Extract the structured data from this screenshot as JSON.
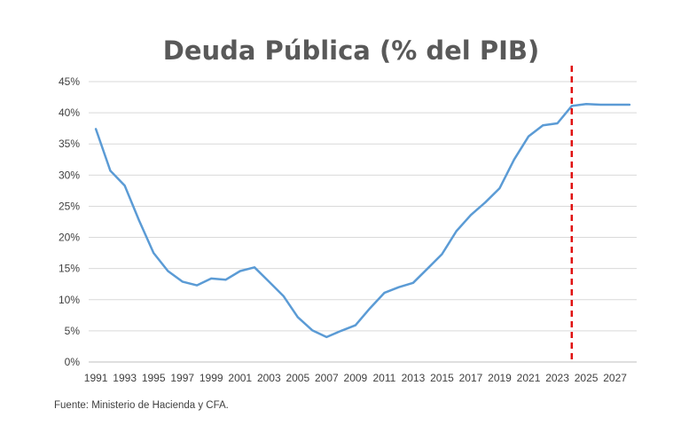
{
  "chart_data": {
    "type": "line",
    "title": "Deuda Pública (% del PIB)",
    "xlabel": "",
    "ylabel": "",
    "source": "Fuente: Ministerio de Hacienda y CFA.",
    "ylim": [
      0,
      45
    ],
    "yticks": [
      "0%",
      "5%",
      "10%",
      "15%",
      "20%",
      "25%",
      "30%",
      "35%",
      "40%",
      "45%"
    ],
    "xticks": [
      "1991",
      "1993",
      "1995",
      "1997",
      "1999",
      "2001",
      "2003",
      "2005",
      "2007",
      "2009",
      "2011",
      "2013",
      "2015",
      "2017",
      "2019",
      "2021",
      "2023",
      "2025",
      "2027"
    ],
    "grid": true,
    "vline": {
      "x": 2024,
      "style": "dashed",
      "color": "#e01010"
    },
    "series": [
      {
        "color": "#5b9bd5",
        "x": [
          1991,
          1992,
          1993,
          1994,
          1995,
          1996,
          1997,
          1998,
          1999,
          2000,
          2001,
          2002,
          2003,
          2004,
          2005,
          2006,
          2007,
          2008,
          2009,
          2010,
          2011,
          2012,
          2013,
          2014,
          2015,
          2016,
          2017,
          2018,
          2019,
          2020,
          2021,
          2022,
          2023,
          2024,
          2025,
          2026,
          2027,
          2028
        ],
        "values": [
          37.4,
          30.7,
          28.3,
          22.7,
          17.5,
          14.6,
          12.9,
          12.3,
          13.4,
          13.2,
          14.6,
          15.2,
          12.9,
          10.6,
          7.2,
          5.1,
          4.0,
          5.0,
          5.9,
          8.6,
          11.1,
          12.0,
          12.7,
          15.0,
          17.3,
          21.0,
          23.6,
          25.6,
          27.9,
          32.5,
          36.2,
          38.0,
          38.3,
          41.1,
          41.4,
          41.3,
          41.3,
          41.3
        ]
      }
    ]
  }
}
